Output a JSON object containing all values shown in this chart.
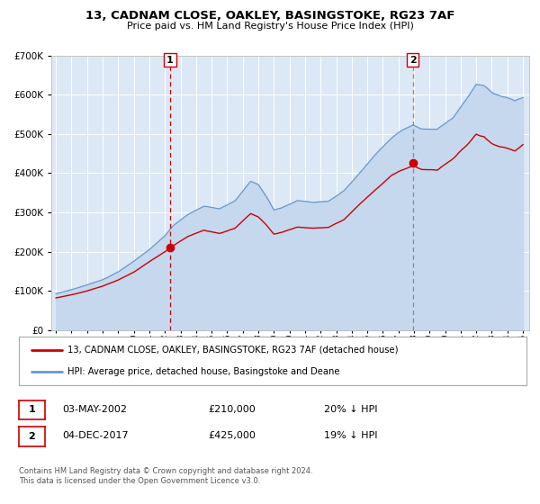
{
  "title": "13, CADNAM CLOSE, OAKLEY, BASINGSTOKE, RG23 7AF",
  "subtitle": "Price paid vs. HM Land Registry's House Price Index (HPI)",
  "legend_line1": "13, CADNAM CLOSE, OAKLEY, BASINGSTOKE, RG23 7AF (detached house)",
  "legend_line2": "HPI: Average price, detached house, Basingstoke and Deane",
  "annotation1_date": "03-MAY-2002",
  "annotation1_price": "£210,000",
  "annotation1_pct": "20% ↓ HPI",
  "annotation2_date": "04-DEC-2017",
  "annotation2_price": "£425,000",
  "annotation2_pct": "19% ↓ HPI",
  "footer1": "Contains HM Land Registry data © Crown copyright and database right 2024.",
  "footer2": "This data is licensed under the Open Government Licence v3.0.",
  "sale_color": "#cc0000",
  "hpi_color": "#6699cc",
  "hpi_fill_color": "#c5d8ee",
  "grid_color": "#d8d8d8",
  "background_color": "#dce8f5",
  "ylim": [
    0,
    700000
  ],
  "yticks": [
    0,
    100000,
    200000,
    300000,
    400000,
    500000,
    600000,
    700000
  ],
  "sale1_x": 2002.33,
  "sale1_y": 210000,
  "sale2_x": 2017.92,
  "sale2_y": 425000,
  "vline1_color": "#cc0000",
  "vline2_color": "#888888",
  "xmin": 1994.7,
  "xmax": 2025.4
}
